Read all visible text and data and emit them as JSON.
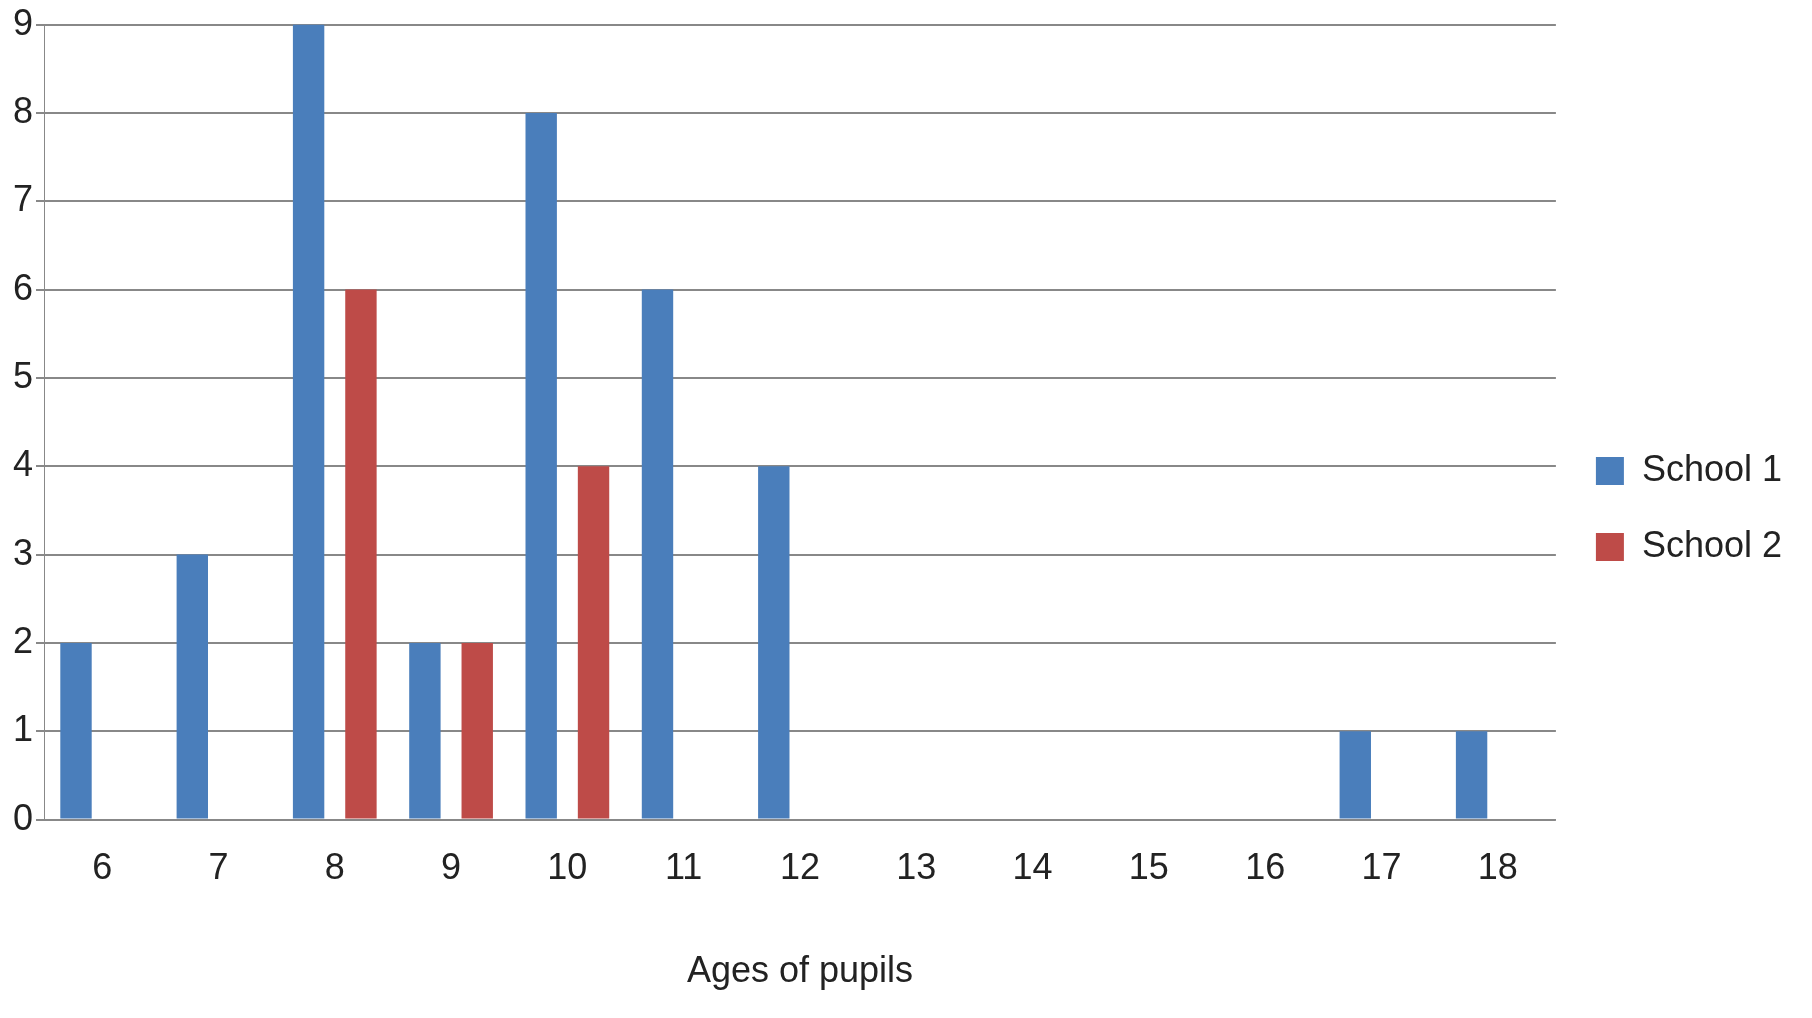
{
  "chart_data": {
    "type": "bar",
    "xlabel": "Ages of pupils",
    "categories": [
      "6",
      "7",
      "8",
      "9",
      "10",
      "11",
      "12",
      "13",
      "14",
      "15",
      "16",
      "17",
      "18"
    ],
    "series": [
      {
        "name": "School 1",
        "color": "#4a7ebb",
        "values": [
          2,
          3,
          9,
          2,
          8,
          6,
          4,
          0,
          0,
          0,
          0,
          1,
          1
        ]
      },
      {
        "name": "School 2",
        "color": "#be4b48",
        "values": [
          0,
          0,
          6,
          2,
          4,
          0,
          0,
          0,
          0,
          0,
          0,
          0,
          0
        ]
      }
    ],
    "ylim": [
      0,
      9
    ],
    "yticks": [
      0,
      1,
      2,
      3,
      4,
      5,
      6,
      7,
      8,
      9
    ],
    "grid": "y",
    "legend": "right"
  }
}
